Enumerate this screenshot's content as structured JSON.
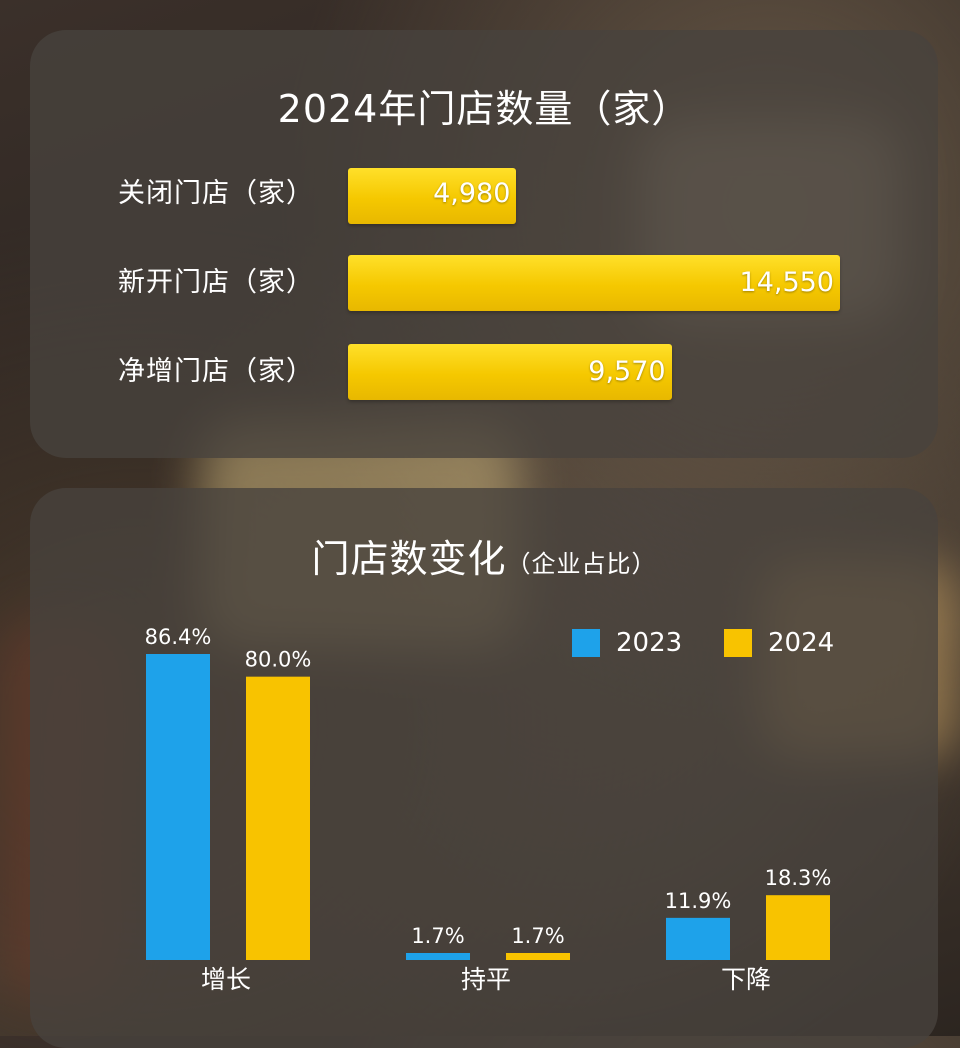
{
  "closures_chart": {
    "title": "2024年门店数量（家）",
    "chart_data": {
      "type": "bar",
      "orientation": "horizontal",
      "title": "2024年门店数量（家）",
      "categories": [
        "关闭门店（家）",
        "新开门店（家）",
        "净增门店（家）"
      ],
      "values": [
        4980,
        14550,
        9570
      ],
      "value_labels": [
        "4,980",
        "14,550",
        "9,570"
      ],
      "xlim": [
        0,
        14550
      ],
      "grid": false
    }
  },
  "change_chart": {
    "title": "门店数变化",
    "subtitle": "（企业占比）",
    "chart_data": {
      "type": "bar",
      "title": "门店数变化（企业占比）",
      "categories": [
        "增长",
        "持平",
        "下降"
      ],
      "series": [
        {
          "name": "2023",
          "values": [
            86.4,
            1.7,
            11.9
          ],
          "labels": [
            "86.4%",
            "1.7%",
            "11.9%"
          ],
          "color": "#1ea2ea"
        },
        {
          "name": "2024",
          "values": [
            80.0,
            1.7,
            18.3
          ],
          "labels": [
            "80.0%",
            "1.7%",
            "18.3%"
          ],
          "color": "#f8c300"
        }
      ],
      "ylim": [
        0,
        86.4
      ],
      "legend": "top-right",
      "grid": false
    }
  }
}
